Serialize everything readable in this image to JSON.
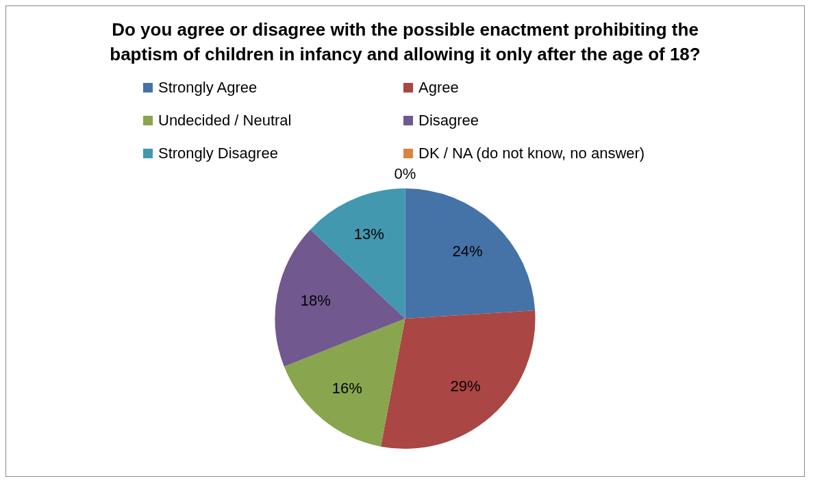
{
  "chart_data": {
    "type": "pie",
    "title": "Do you agree or disagree with the possible enactment prohibiting the baptism of children in infancy and allowing it only after the age of 18?",
    "categories": [
      "Strongly Agree",
      "Agree",
      "Undecided / Neutral",
      "Disagree",
      "Strongly Disagree",
      "DK / NA (do not know, no answer)"
    ],
    "values": [
      24,
      29,
      16,
      18,
      13,
      0
    ],
    "colors": [
      "#4572a7",
      "#aa4643",
      "#89a54e",
      "#71588f",
      "#4198af",
      "#db843d"
    ],
    "value_labels": [
      "24%",
      "29%",
      "16%",
      "18%",
      "13%",
      "0%"
    ],
    "legend": "top"
  }
}
